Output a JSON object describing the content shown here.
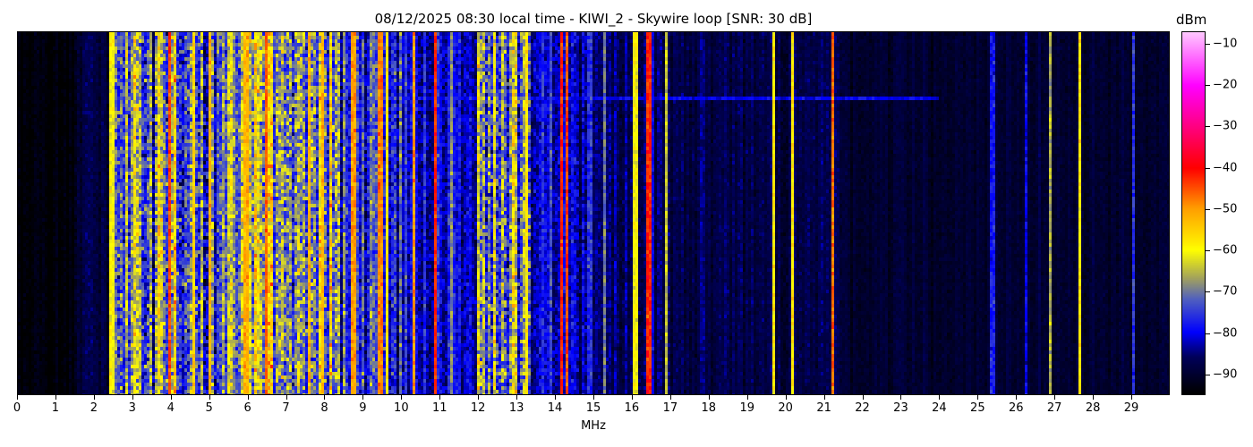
{
  "chart_data": {
    "type": "heatmap",
    "title": "08/12/2025 08:30 local time - KIWI_2 - Skywire loop [SNR: 30 dB]",
    "xlabel": "MHz",
    "xlim": [
      0,
      30
    ],
    "x_ticks": [
      "0",
      "1",
      "2",
      "3",
      "4",
      "5",
      "6",
      "7",
      "8",
      "9",
      "10",
      "11",
      "12",
      "13",
      "14",
      "15",
      "16",
      "17",
      "18",
      "19",
      "20",
      "21",
      "22",
      "23",
      "24",
      "25",
      "26",
      "27",
      "28",
      "29"
    ],
    "colorbar": {
      "label": "dBm",
      "range": [
        -95,
        -7
      ],
      "ticks": [
        "-10",
        "-20",
        "-30",
        "-40",
        "-50",
        "-60",
        "-70",
        "-80",
        "-90"
      ],
      "colormap": [
        {
          "dbm": -95,
          "color": "#000000"
        },
        {
          "dbm": -86,
          "color": "#00005a"
        },
        {
          "dbm": -80,
          "color": "#0000ff"
        },
        {
          "dbm": -72,
          "color": "#5060c0"
        },
        {
          "dbm": -67,
          "color": "#a0a060"
        },
        {
          "dbm": -60,
          "color": "#ffff00"
        },
        {
          "dbm": -50,
          "color": "#ffa000"
        },
        {
          "dbm": -40,
          "color": "#ff0000"
        },
        {
          "dbm": -30,
          "color": "#ff0080"
        },
        {
          "dbm": -20,
          "color": "#ff00ff"
        },
        {
          "dbm": -7,
          "color": "#ffc8ff"
        }
      ]
    },
    "background_bands": [
      {
        "from_mhz": 0,
        "to_mhz": 1.5,
        "dbm": -94,
        "spread": 2
      },
      {
        "from_mhz": 1.5,
        "to_mhz": 2.4,
        "dbm": -89,
        "spread": 3
      },
      {
        "from_mhz": 2.4,
        "to_mhz": 3.0,
        "dbm": -76,
        "spread": 10
      },
      {
        "from_mhz": 3.0,
        "to_mhz": 3.9,
        "dbm": -68,
        "spread": 12
      },
      {
        "from_mhz": 3.9,
        "to_mhz": 5.0,
        "dbm": -72,
        "spread": 12
      },
      {
        "from_mhz": 5.0,
        "to_mhz": 5.8,
        "dbm": -74,
        "spread": 10
      },
      {
        "from_mhz": 5.8,
        "to_mhz": 7.0,
        "dbm": -64,
        "spread": 12
      },
      {
        "from_mhz": 7.0,
        "to_mhz": 8.4,
        "dbm": -70,
        "spread": 12
      },
      {
        "from_mhz": 8.4,
        "to_mhz": 10.0,
        "dbm": -77,
        "spread": 8
      },
      {
        "from_mhz": 10.0,
        "to_mhz": 12.0,
        "dbm": -81,
        "spread": 6
      },
      {
        "from_mhz": 12.0,
        "to_mhz": 13.4,
        "dbm": -72,
        "spread": 12
      },
      {
        "from_mhz": 13.4,
        "to_mhz": 15.0,
        "dbm": -82,
        "spread": 6
      },
      {
        "from_mhz": 15.0,
        "to_mhz": 17.0,
        "dbm": -86,
        "spread": 4
      },
      {
        "from_mhz": 17.0,
        "to_mhz": 21.5,
        "dbm": -88,
        "spread": 3
      },
      {
        "from_mhz": 21.5,
        "to_mhz": 30.0,
        "dbm": -90,
        "spread": 2
      }
    ],
    "signals": [
      {
        "mhz": 2.45,
        "dbm": -60,
        "width_mhz": 0.05
      },
      {
        "mhz": 3.95,
        "dbm": -44,
        "width_mhz": 0.08
      },
      {
        "mhz": 4.6,
        "dbm": -55,
        "width_mhz": 0.05
      },
      {
        "mhz": 5.0,
        "dbm": -52,
        "width_mhz": 0.05
      },
      {
        "mhz": 5.95,
        "dbm": -52,
        "width_mhz": 0.1
      },
      {
        "mhz": 6.5,
        "dbm": -46,
        "width_mhz": 0.08
      },
      {
        "mhz": 7.6,
        "dbm": -52,
        "width_mhz": 0.05
      },
      {
        "mhz": 7.95,
        "dbm": -52,
        "width_mhz": 0.05
      },
      {
        "mhz": 8.75,
        "dbm": -50,
        "width_mhz": 0.04
      },
      {
        "mhz": 9.45,
        "dbm": -48,
        "width_mhz": 0.1
      },
      {
        "mhz": 9.65,
        "dbm": -58,
        "width_mhz": 0.05
      },
      {
        "mhz": 10.3,
        "dbm": -50,
        "width_mhz": 0.05
      },
      {
        "mhz": 10.9,
        "dbm": -42,
        "width_mhz": 0.05
      },
      {
        "mhz": 11.3,
        "dbm": -68,
        "width_mhz": 0.03
      },
      {
        "mhz": 13.25,
        "dbm": -58,
        "width_mhz": 0.05
      },
      {
        "mhz": 14.15,
        "dbm": -42,
        "width_mhz": 0.08
      },
      {
        "mhz": 14.3,
        "dbm": -44,
        "width_mhz": 0.05
      },
      {
        "mhz": 15.3,
        "dbm": -70,
        "width_mhz": 0.03
      },
      {
        "mhz": 16.1,
        "dbm": -60,
        "width_mhz": 0.03
      },
      {
        "mhz": 16.45,
        "dbm": -42,
        "width_mhz": 0.2
      },
      {
        "mhz": 16.9,
        "dbm": -64,
        "width_mhz": 0.03
      },
      {
        "mhz": 19.7,
        "dbm": -58,
        "width_mhz": 0.03
      },
      {
        "mhz": 20.2,
        "dbm": -58,
        "width_mhz": 0.03
      },
      {
        "mhz": 21.25,
        "dbm": -47,
        "width_mhz": 0.04
      },
      {
        "mhz": 25.4,
        "dbm": -78,
        "width_mhz": 0.05
      },
      {
        "mhz": 26.3,
        "dbm": -80,
        "width_mhz": 0.03
      },
      {
        "mhz": 26.9,
        "dbm": -66,
        "width_mhz": 0.03
      },
      {
        "mhz": 27.7,
        "dbm": -58,
        "width_mhz": 0.03
      },
      {
        "mhz": 29.1,
        "dbm": -76,
        "width_mhz": 0.03
      }
    ],
    "horizontal_trace": {
      "from_mhz": 10.0,
      "to_mhz": 24.0,
      "dbm": -80
    }
  }
}
